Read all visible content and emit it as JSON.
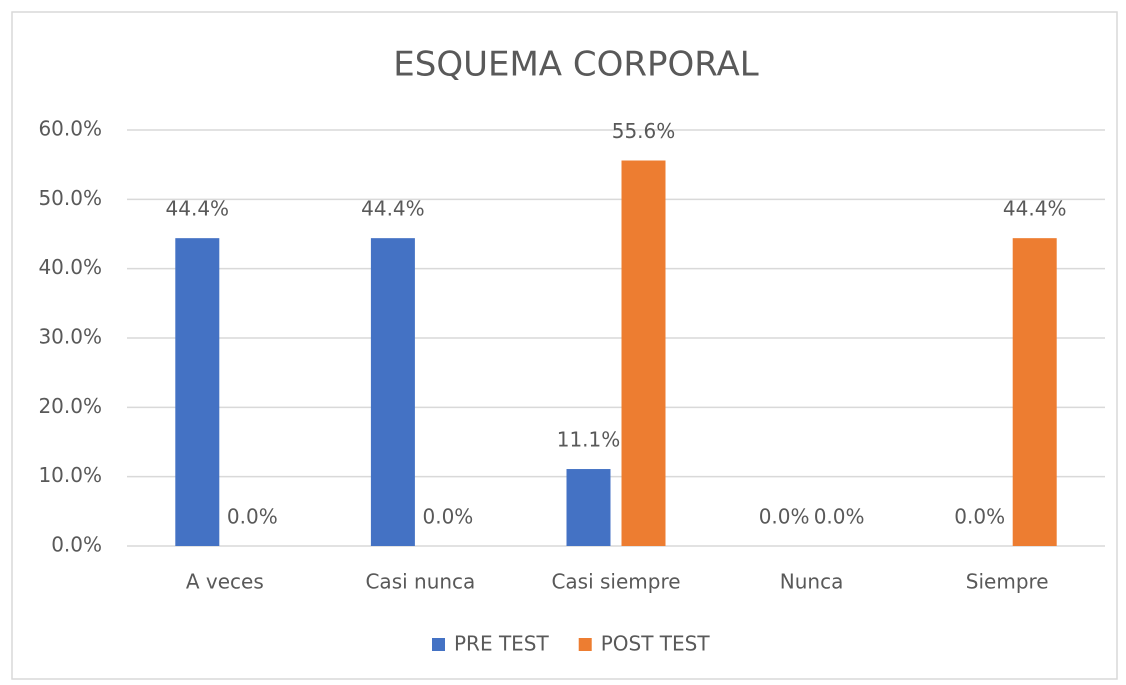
{
  "chart_data": {
    "type": "bar",
    "title": "ESQUEMA CORPORAL",
    "categories": [
      "A veces",
      "Casi nunca",
      "Casi siempre",
      "Nunca",
      "Siempre"
    ],
    "series": [
      {
        "name": "PRE TEST",
        "color": "#4472c4",
        "values": [
          44.4,
          44.4,
          11.1,
          0,
          0
        ],
        "value_labels": [
          "44.4%",
          "44.4%",
          "11.1%",
          "0.0%",
          "0.0%"
        ]
      },
      {
        "name": "POST TEST",
        "color": "#ed7d31",
        "values": [
          0,
          0,
          55.6,
          0,
          44.4
        ],
        "value_labels": [
          "0.0%",
          "0.0%",
          "55.6%",
          "0.0%",
          "44.4%"
        ]
      }
    ],
    "ylim": [
      0,
      60
    ],
    "yticks": [
      {
        "value": 0,
        "label": "0.0%"
      },
      {
        "value": 10,
        "label": "10.0%"
      },
      {
        "value": 20,
        "label": "20.0%"
      },
      {
        "value": 30,
        "label": "30.0%"
      },
      {
        "value": 40,
        "label": "40.0%"
      },
      {
        "value": 50,
        "label": "50.0%"
      },
      {
        "value": 60,
        "label": "60.0%"
      }
    ],
    "grid": true,
    "legend": "bottom"
  }
}
